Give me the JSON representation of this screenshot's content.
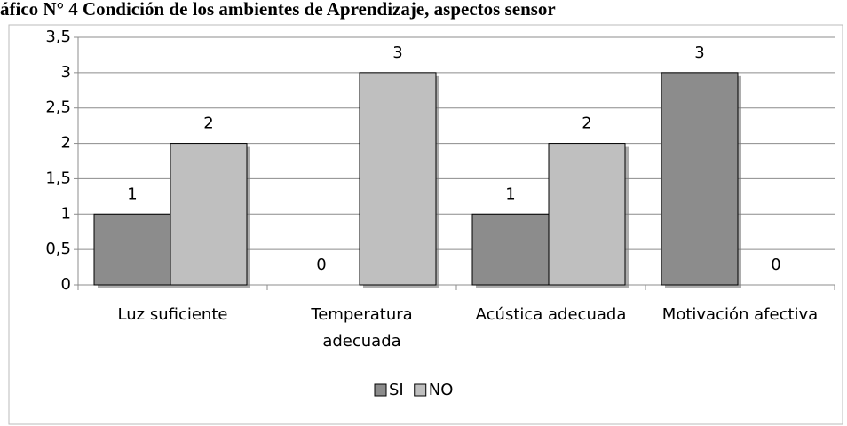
{
  "chart_data": {
    "type": "bar",
    "title": "áfico N° 4 Condición de los ambientes de Aprendizaje, aspectos sensor",
    "categories": [
      "Luz suficiente",
      "Temperatura adecuada",
      "Acústica adecuada",
      "Motivación afectiva"
    ],
    "series": [
      {
        "name": "SI",
        "color": "#8c8c8c",
        "values": [
          1,
          0,
          1,
          3
        ]
      },
      {
        "name": "NO",
        "color": "#bfbfbf",
        "values": [
          2,
          3,
          2,
          0
        ]
      }
    ],
    "ylim": [
      0,
      3.5
    ],
    "yticks": [
      0,
      {
        "value": 0.5,
        "label": "0,5"
      },
      1,
      {
        "value": 1.5,
        "label": "1,5"
      },
      2,
      {
        "value": 2.5,
        "label": "2,5"
      },
      3,
      {
        "value": 3.5,
        "label": "3,5"
      }
    ],
    "grid": true,
    "legend": "bottom"
  }
}
